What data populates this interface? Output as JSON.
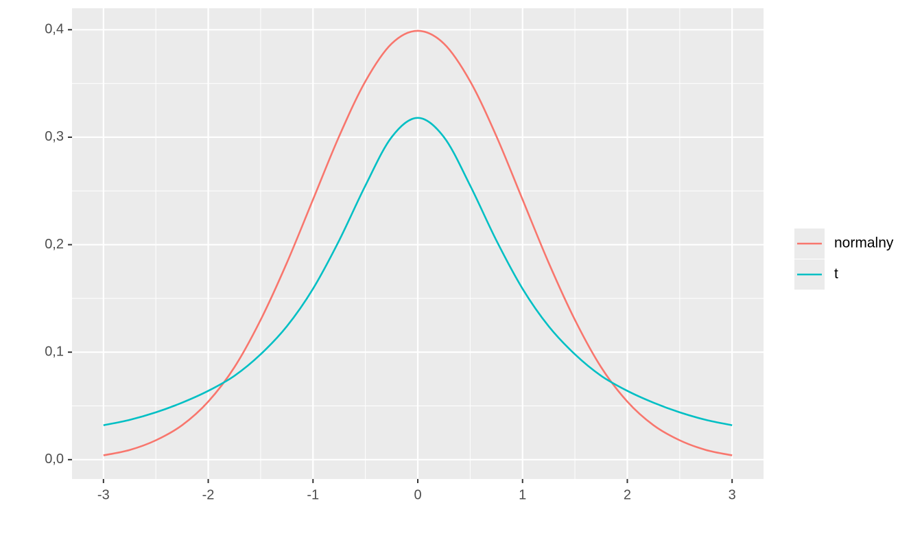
{
  "chart_data": {
    "type": "line",
    "x": [
      -3,
      -2.75,
      -2.5,
      -2.25,
      -2,
      -1.75,
      -1.5,
      -1.25,
      -1,
      -0.75,
      -0.5,
      -0.25,
      0,
      0.25,
      0.5,
      0.75,
      1,
      1.25,
      1.5,
      1.75,
      2,
      2.25,
      2.5,
      2.75,
      3
    ],
    "series": [
      {
        "name": "normalny",
        "color": "#F8766D",
        "values": [
          0.004,
          0.009,
          0.018,
          0.032,
          0.054,
          0.086,
          0.13,
          0.183,
          0.242,
          0.301,
          0.352,
          0.387,
          0.399,
          0.387,
          0.352,
          0.301,
          0.242,
          0.183,
          0.13,
          0.086,
          0.054,
          0.032,
          0.018,
          0.009,
          0.004
        ]
      },
      {
        "name": "t",
        "color": "#00BFC4",
        "values": [
          0.032,
          0.037,
          0.044,
          0.053,
          0.064,
          0.078,
          0.098,
          0.124,
          0.159,
          0.204,
          0.255,
          0.3,
          0.318,
          0.3,
          0.255,
          0.204,
          0.159,
          0.124,
          0.098,
          0.078,
          0.064,
          0.053,
          0.044,
          0.037,
          0.032
        ]
      }
    ],
    "xlim": [
      -3.3,
      3.3
    ],
    "xticks": [
      -3,
      -2,
      -1,
      0,
      1,
      2,
      3
    ],
    "ylim": [
      -0.018,
      0.42
    ],
    "yticks": [
      {
        "value": 0,
        "label": "0,0"
      },
      {
        "value": 0.1,
        "label": "0,1"
      },
      {
        "value": 0.2,
        "label": "0,2"
      },
      {
        "value": 0.3,
        "label": "0,3"
      },
      {
        "value": 0.4,
        "label": "0,4"
      }
    ],
    "grid": true,
    "legend": "right"
  }
}
